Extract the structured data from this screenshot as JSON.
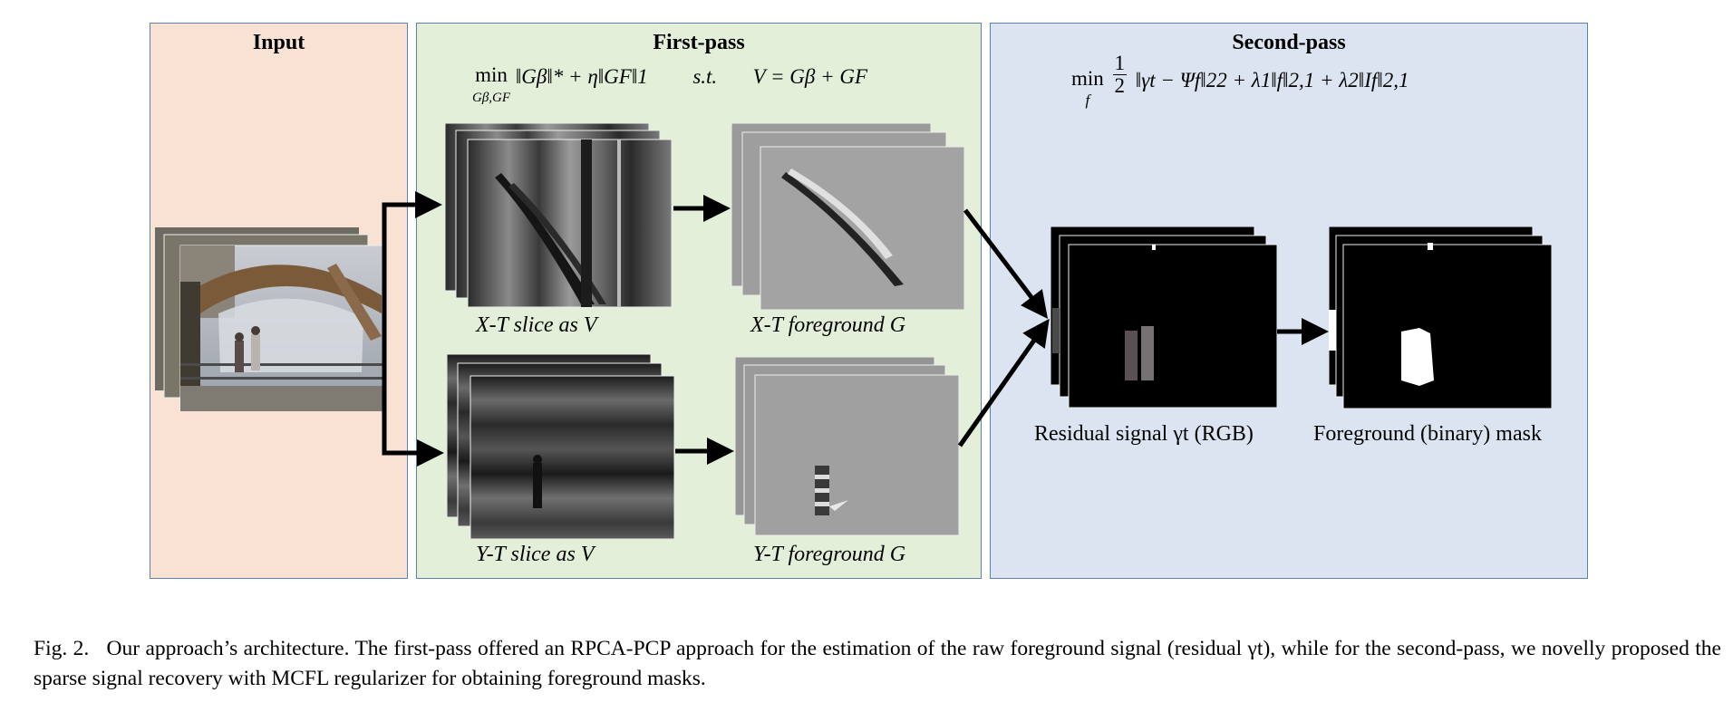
{
  "panels": {
    "input": {
      "title": "Input"
    },
    "first": {
      "title": "First-pass"
    },
    "second": {
      "title": "Second-pass"
    }
  },
  "formulas": {
    "first": {
      "min": "min",
      "min_sub": "Gβ,GF",
      "body": "‖Gβ‖* + η‖GF‖1",
      "st": "s.t.",
      "constraint": "V = Gβ + GF"
    },
    "second": {
      "min": "min",
      "min_sub": "f",
      "frac_num": "1",
      "frac_den": "2",
      "body": "‖γt − Ψf‖22 + λ1‖f‖2,1 + λ2‖If‖2,1"
    }
  },
  "labels": {
    "xt_slice": "X-T  slice as V",
    "xt_fg": "X-T  foreground G",
    "yt_slice": "Y-T  slice as V",
    "yt_fg": "Y-T  foreground G",
    "residual": "Residual signal γt (RGB)",
    "mask": "Foreground (binary) mask"
  },
  "caption": {
    "fig": "Fig. 2.",
    "text": "Our approach’s architecture. The first-pass offered an RPCA-PCP approach for the estimation of the raw foreground signal (residual γt), while for the second-pass, we novelly proposed the sparse signal recovery with MCFL regularizer for obtaining foreground masks."
  },
  "colors": {
    "input_bg": "#f8e2d4",
    "first_bg": "#e3efd9",
    "second_bg": "#dce4f1",
    "border": "#5b7fb8"
  }
}
